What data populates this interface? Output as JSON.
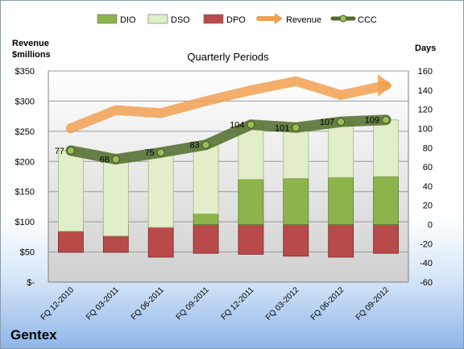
{
  "company": "Gentex",
  "chart_data": {
    "type": "bar",
    "title": "Quarterly Periods",
    "left_axis_label_line1": "Revenue",
    "left_axis_label_line2": "$millions",
    "right_axis_label": "Days",
    "categories": [
      "FQ 12-2010",
      "FQ 03-2011",
      "FQ 06-2011",
      "FQ 09-2011",
      "FQ 12-2011",
      "FQ 03-2012",
      "FQ 06-2012",
      "FQ 09-2012"
    ],
    "left_ylim": [
      0,
      350
    ],
    "left_ticks": [
      "$-",
      "$50",
      "$100",
      "$150",
      "$200",
      "$250",
      "$300",
      "$350"
    ],
    "right_ylim": [
      -60,
      160
    ],
    "right_ticks": [
      "-60",
      "-40",
      "-20",
      "0",
      "20",
      "40",
      "60",
      "80",
      "100",
      "120",
      "140",
      "160"
    ],
    "legend_position": "top",
    "grid": true,
    "series": [
      {
        "name": "DIO",
        "axis": "right",
        "kind": "bar",
        "color": "#8db44a",
        "values": [
          -7,
          -12,
          -3,
          11,
          47,
          48,
          49,
          50
        ]
      },
      {
        "name": "DSO",
        "axis": "right",
        "kind": "bar",
        "color": "#e2eec9",
        "values": [
          84,
          80,
          78,
          72,
          57,
          53,
          58,
          59
        ]
      },
      {
        "name": "DPO",
        "axis": "right",
        "kind": "bar",
        "color": "#b94a4a",
        "values": [
          -29,
          -29,
          -34,
          -30,
          -31,
          -33,
          -34,
          -30
        ]
      },
      {
        "name": "Revenue",
        "axis": "left",
        "kind": "line",
        "color": "#f0a050",
        "values": [
          255,
          285,
          280,
          300,
          318,
          333,
          310,
          326
        ]
      },
      {
        "name": "CCC",
        "axis": "right",
        "kind": "line",
        "color": "#4f6b2a",
        "values": [
          77,
          68,
          75,
          83,
          104,
          101,
          107,
          109
        ]
      }
    ],
    "data_labels": [
      "77",
      "68",
      "75",
      "83",
      "104",
      "101",
      "107",
      "109"
    ]
  }
}
